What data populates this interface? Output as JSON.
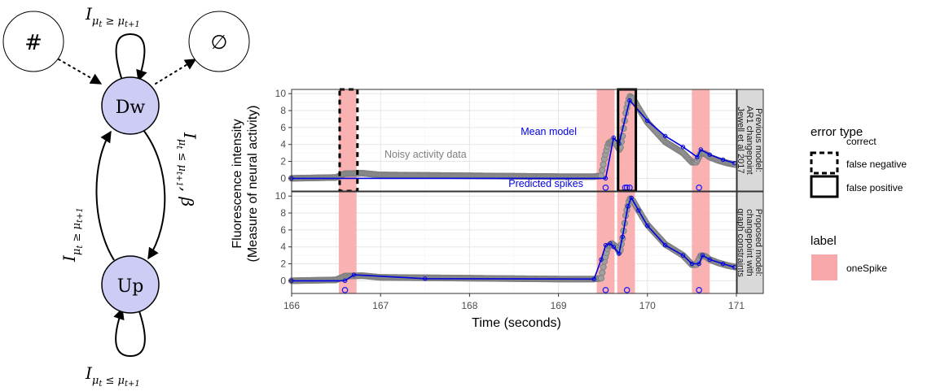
{
  "diagram": {
    "nodes": {
      "hash": "#",
      "empty": "∅",
      "down": "Dw",
      "up": "Up"
    },
    "edges": {
      "down_self": "I_{μ_t ≥ μ_{t+1}}",
      "down_to_up": "I_{μ_t ≤ μ_{t+1}}, β",
      "up_to_down": "I_{μ_t ≥ μ_{t+1}}",
      "up_self": "I_{μ_t ≤ μ_{t+1}}"
    },
    "colors": {
      "state_fill": "#ccccf5",
      "terminal_fill": "#ffffff",
      "stroke": "#000000"
    }
  },
  "chart_data": {
    "type": "line",
    "xlabel": "Time (seconds)",
    "ylabel": "Fluorescence intensity\n(Measure of neural activity)",
    "xlim": [
      166,
      171
    ],
    "x_ticks": [
      "166",
      "167",
      "168",
      "169",
      "170",
      "171"
    ],
    "ylim": [
      -1.5,
      10.5
    ],
    "y_ticks": [
      "0",
      "2",
      "4",
      "6",
      "8",
      "10"
    ],
    "grid": true,
    "legend_placement": "right",
    "label_regions": [
      {
        "label": "oneSpike",
        "xmin": 166.53,
        "xmax": 166.73
      },
      {
        "label": "oneSpike",
        "xmin": 169.43,
        "xmax": 169.63
      },
      {
        "label": "oneSpike",
        "xmin": 169.66,
        "xmax": 169.86
      },
      {
        "label": "oneSpike",
        "xmin": 170.5,
        "xmax": 170.7
      }
    ],
    "data_points": {
      "x": [
        166.0,
        166.5,
        166.6,
        166.8,
        167.0,
        168.0,
        169.0,
        169.4,
        169.48,
        169.52,
        169.56,
        169.6,
        169.65,
        169.69,
        169.72,
        169.76,
        169.8,
        169.84,
        169.9,
        170.0,
        170.2,
        170.4,
        170.5,
        170.55,
        170.6,
        170.65,
        170.7,
        170.8,
        170.9,
        171.0
      ],
      "y": [
        0.0,
        0.1,
        0.55,
        0.6,
        0.4,
        0.3,
        0.2,
        0.2,
        0.3,
        2.5,
        4.1,
        4.4,
        4.0,
        3.3,
        5.0,
        8.0,
        9.7,
        9.4,
        8.3,
        6.6,
        4.3,
        3.0,
        1.9,
        1.9,
        3.0,
        2.9,
        2.5,
        2.1,
        1.8,
        1.6
      ]
    },
    "panels": [
      {
        "strip": "Previous model:\nAR1 changepoint\nJewell et al 2017",
        "model_line": {
          "x": [
            166.0,
            169.53,
            169.62,
            169.68,
            169.8,
            170.0,
            170.2,
            170.4,
            170.56,
            170.6,
            170.7,
            170.85,
            170.98
          ],
          "y": [
            0.0,
            0.0,
            4.8,
            4.1,
            9.2,
            6.8,
            5.0,
            3.7,
            2.5,
            3.4,
            2.8,
            2.2,
            1.8
          ]
        },
        "predicted_spikes": [
          169.53,
          169.75,
          169.77,
          169.8,
          170.58
        ],
        "errors": [
          {
            "type": "false negative",
            "xmin": 166.54,
            "xmax": 166.74
          },
          {
            "type": "false positive",
            "xmin": 169.67,
            "xmax": 169.87
          }
        ],
        "annotations": {
          "mean_model": "Mean model",
          "noisy_activity": "Noisy activity data",
          "predicted_spikes": "Predicted spikes"
        }
      },
      {
        "strip": "Proposed model:\nchangepoint with\ngraph constraints",
        "model_line": {
          "x": [
            166.0,
            166.6,
            166.7,
            167.5,
            169.4,
            169.48,
            169.53,
            169.58,
            169.62,
            169.68,
            169.72,
            169.78,
            169.82,
            169.9,
            170.0,
            170.2,
            170.4,
            170.5,
            170.58,
            170.62,
            170.7,
            170.85,
            170.98
          ],
          "y": [
            0.0,
            0.0,
            0.7,
            0.25,
            0.2,
            2.5,
            4.2,
            4.4,
            4.0,
            3.2,
            5.2,
            8.8,
            9.8,
            8.3,
            6.5,
            4.2,
            3.0,
            2.0,
            2.0,
            3.0,
            2.5,
            2.0,
            1.6
          ]
        },
        "predicted_spikes": [
          166.6,
          169.53,
          169.77,
          170.58
        ]
      }
    ],
    "legend": {
      "error_type": {
        "title": "error type",
        "entries": [
          "correct",
          "false negative",
          "false positive"
        ]
      },
      "label": {
        "title": "label",
        "entries": [
          "oneSpike"
        ]
      }
    },
    "colors": {
      "label_fill": "#f8a8a8",
      "model_line": "#0000e0",
      "data_points": "#808080",
      "spike_marker": "#1a1aff",
      "panel_bg": "#ffffff",
      "grid": "#e6e6e6",
      "strip_bg": "#d9d9d9"
    }
  }
}
